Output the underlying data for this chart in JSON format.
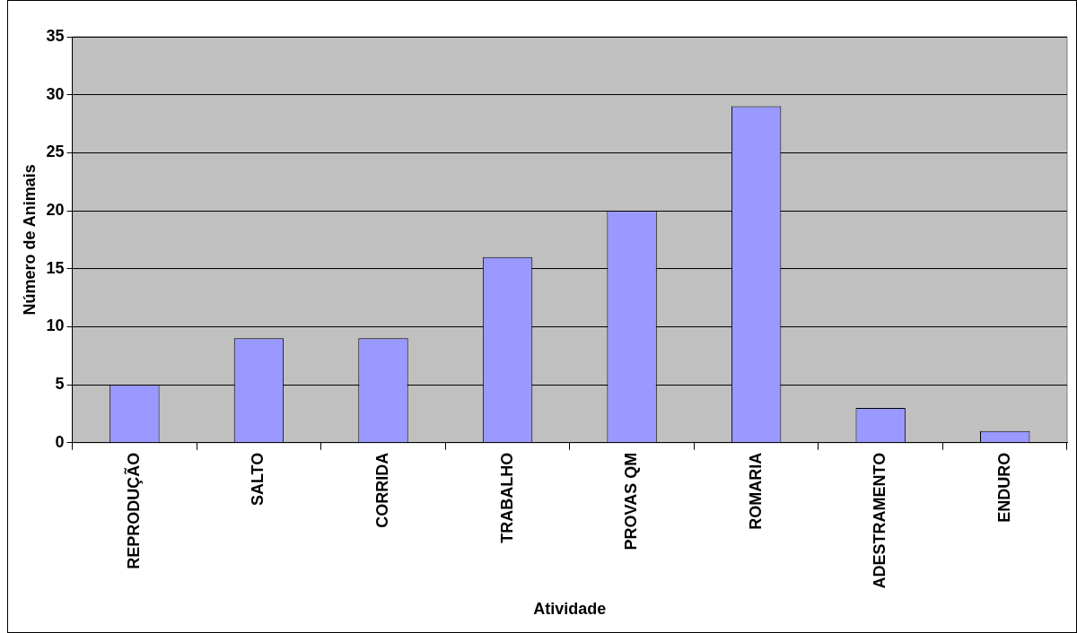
{
  "chart_data": {
    "type": "bar",
    "xlabel": "Atividade",
    "ylabel": "Número de Animais",
    "categories": [
      "REPRODUÇÃO",
      "SALTO",
      "CORRIDA",
      "TRABALHO",
      "PROVAS QM",
      "ROMARIA",
      "ADESTRAMENTO",
      "ENDURO"
    ],
    "values": [
      5,
      9,
      9,
      16,
      20,
      29,
      3,
      1
    ],
    "color": "#9999ff",
    "ylim": [
      0,
      35
    ],
    "yticks": [
      0,
      5,
      10,
      15,
      20,
      25,
      30,
      35
    ],
    "grid": "y",
    "legend": false
  }
}
